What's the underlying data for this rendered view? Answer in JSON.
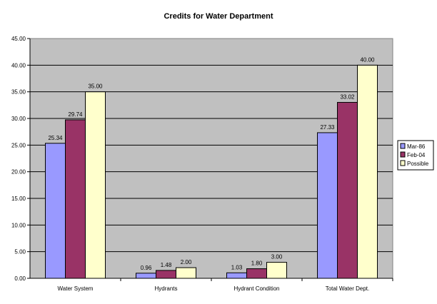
{
  "chart_data": {
    "type": "bar",
    "title": "Credits for Water Department",
    "categories": [
      "Water System",
      "Hydrants",
      "Hydrant Condition",
      "Total Water Dept."
    ],
    "series": [
      {
        "name": "Mar-86",
        "color": "#9999ff",
        "values": [
          25.34,
          0.96,
          1.03,
          27.33
        ],
        "labels": [
          "25.34",
          "0.96",
          "1.03",
          "27.33"
        ]
      },
      {
        "name": "Feb-04",
        "color": "#993366",
        "values": [
          29.74,
          1.48,
          1.8,
          33.02
        ],
        "labels": [
          "29.74",
          "1.48",
          "1.80",
          "33.02"
        ]
      },
      {
        "name": "Possible",
        "color": "#ffffcc",
        "values": [
          35.0,
          2.0,
          3.0,
          40.0
        ],
        "labels": [
          "35.00",
          "2.00",
          "3.00",
          "40.00"
        ]
      }
    ],
    "ylim": [
      0,
      45
    ],
    "ytick_labels": [
      "0.00",
      "5.00",
      "10.00",
      "15.00",
      "20.00",
      "25.00",
      "30.00",
      "35.00",
      "40.00",
      "45.00"
    ],
    "grid": true,
    "legend_position": "right",
    "plot_background": "#c0c0c0"
  }
}
